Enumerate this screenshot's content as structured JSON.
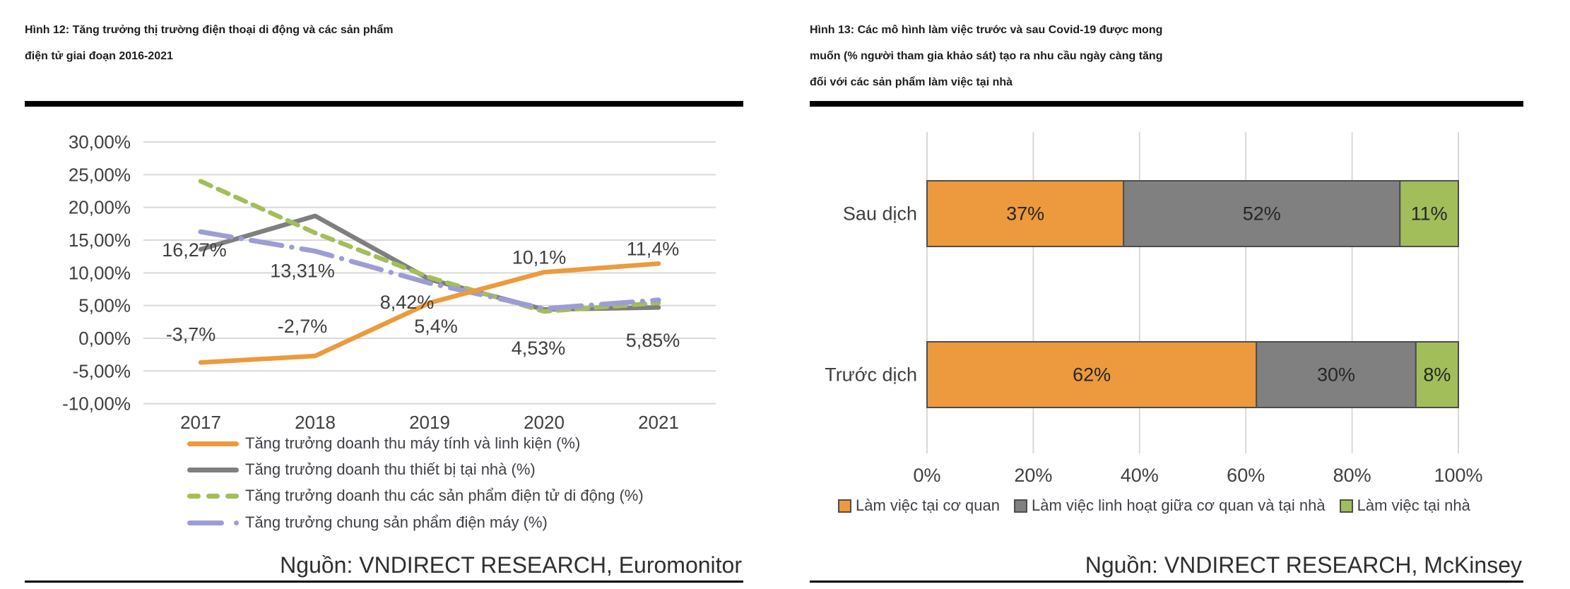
{
  "left_panel": {
    "title_lines": [
      "Hình 12: Tăng trưởng thị trường điện thoại di động và các sản phẩm",
      "điện tử giai đoạn 2016-2021"
    ],
    "source": "Nguồn: VNDIRECT RESEARCH, Euromonitor"
  },
  "right_panel": {
    "title_lines": [
      "Hình 13: Các mô hình làm việc trước và sau Covid-19 được mong",
      "muốn (% người tham gia khảo sát) tạo ra nhu cầu ngày càng tăng",
      "đối với các sản phẩm làm việc tại nhà"
    ],
    "source": "Nguồn: VNDIRECT RESEARCH, McKinsey"
  },
  "colors": {
    "orange": "#EC9A3D",
    "gray": "#7F7F7F",
    "green": "#A3BE59",
    "purple": "#9D9DD5",
    "gridline": "#D9D9D9",
    "bar_border": "#4D4D4D",
    "axis_text": "#3F3F3F"
  },
  "chart_data": [
    {
      "type": "line",
      "title": "",
      "x": [
        "2017",
        "2018",
        "2019",
        "2020",
        "2021"
      ],
      "xlabel": "",
      "ylabel": "",
      "ylim": [
        -10,
        30
      ],
      "grid": true,
      "legend_position": "bottom-left",
      "y_axis": {
        "min": -10,
        "max": 30,
        "step": 5,
        "tick_labels": [
          "30,00%",
          "25,00%",
          "20,00%",
          "15,00%",
          "10,00%",
          "5,00%",
          "0,00%",
          "-5,00%",
          "-10,00%"
        ]
      },
      "series": [
        {
          "name": "Tăng trưởng doanh thu máy tính và linh kiện (%)",
          "color": "#EC9A3D",
          "dash": "solid",
          "values": [
            -3.7,
            -2.7,
            5.4,
            10.1,
            11.4
          ]
        },
        {
          "name": "Tăng trưởng doanh thu thiết bị tại nhà (%)",
          "color": "#7F7F7F",
          "dash": "solid",
          "values": [
            13.6,
            18.7,
            9.0,
            4.4,
            4.7
          ]
        },
        {
          "name": "Tăng trưởng doanh thu các sản phẩm điện tử di động (%)",
          "color": "#A3BE59",
          "dash": "dash",
          "values": [
            24.0,
            16.1,
            9.3,
            4.1,
            5.4
          ]
        },
        {
          "name": "Tăng trưởng chung sản phẩm điện máy (%)",
          "color": "#9D9DD5",
          "dash": "longdash-dot",
          "values": [
            16.27,
            13.31,
            8.42,
            4.53,
            5.85
          ]
        }
      ],
      "point_labels": [
        {
          "series": 0,
          "index": 0,
          "text": "-3,7%"
        },
        {
          "series": 0,
          "index": 1,
          "text": "-2,7%"
        },
        {
          "series": 0,
          "index": 2,
          "text": "5,4%"
        },
        {
          "series": 0,
          "index": 3,
          "text": "10,1%"
        },
        {
          "series": 0,
          "index": 4,
          "text": "11,4%"
        },
        {
          "series": 3,
          "index": 0,
          "text": "16,27%"
        },
        {
          "series": 3,
          "index": 1,
          "text": "13,31%"
        },
        {
          "series": 3,
          "index": 2,
          "text": "8,42%"
        },
        {
          "series": 3,
          "index": 3,
          "text": "4,53%"
        },
        {
          "series": 3,
          "index": 4,
          "text": "5,85%"
        }
      ]
    },
    {
      "type": "bar",
      "orientation": "horizontal-stacked",
      "title": "",
      "categories": [
        "Sau dịch",
        "Trước dịch"
      ],
      "series": [
        {
          "name": "Làm việc tại cơ quan",
          "color": "#EC9A3D",
          "values": [
            37,
            62
          ]
        },
        {
          "name": "Làm việc linh hoạt giữa cơ quan và tại nhà",
          "color": "#808080",
          "values": [
            52,
            30
          ]
        },
        {
          "name": "Làm việc tại nhà",
          "color": "#A2BE5B",
          "values": [
            11,
            8
          ]
        }
      ],
      "bar_labels": [
        [
          "37%",
          "52%",
          "11%"
        ],
        [
          "62%",
          "30%",
          "8%"
        ]
      ],
      "x_axis": {
        "min": 0,
        "max": 100,
        "step": 20,
        "tick_labels": [
          "0%",
          "20%",
          "40%",
          "60%",
          "80%",
          "100%"
        ]
      },
      "grid": true,
      "legend_position": "bottom"
    }
  ]
}
